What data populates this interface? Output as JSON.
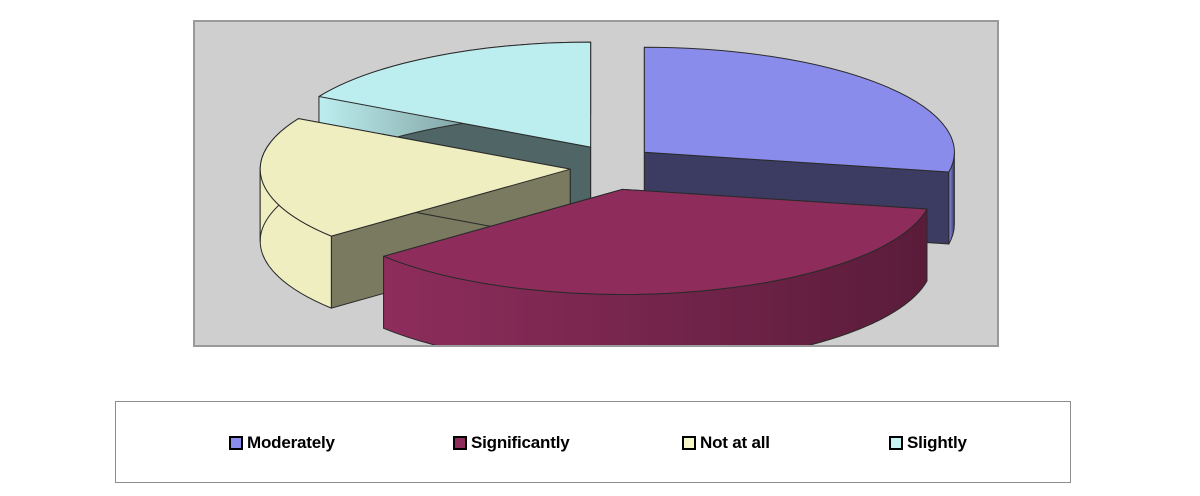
{
  "chart_data": {
    "type": "pie",
    "style": "3d-exploded",
    "title": "",
    "categories": [
      "Moderately",
      "Significantly",
      "Not at all",
      "Slightly"
    ],
    "values": [
      28,
      36,
      19,
      17
    ],
    "unit": "%",
    "colors": [
      "#8a8cec",
      "#8e2d5c",
      "#efeec0",
      "#bdeeef"
    ],
    "side_colors": [
      "#3c3c62",
      "#5a1c3a",
      "#7a7a60",
      "#4f6566"
    ],
    "legend_position": "bottom",
    "data_labels": false
  },
  "legend": {
    "items": [
      {
        "label": "Moderately",
        "color": "#8a8cec"
      },
      {
        "label": "Significantly",
        "color": "#8e2d5c"
      },
      {
        "label": "Not at all",
        "color": "#f7f6c8"
      },
      {
        "label": "Slightly",
        "color": "#c8f4f4"
      }
    ]
  },
  "colors": {
    "plot_background": "#cfcfcf",
    "plot_border": "#9a9a9a",
    "legend_border": "#8c8c8c"
  }
}
